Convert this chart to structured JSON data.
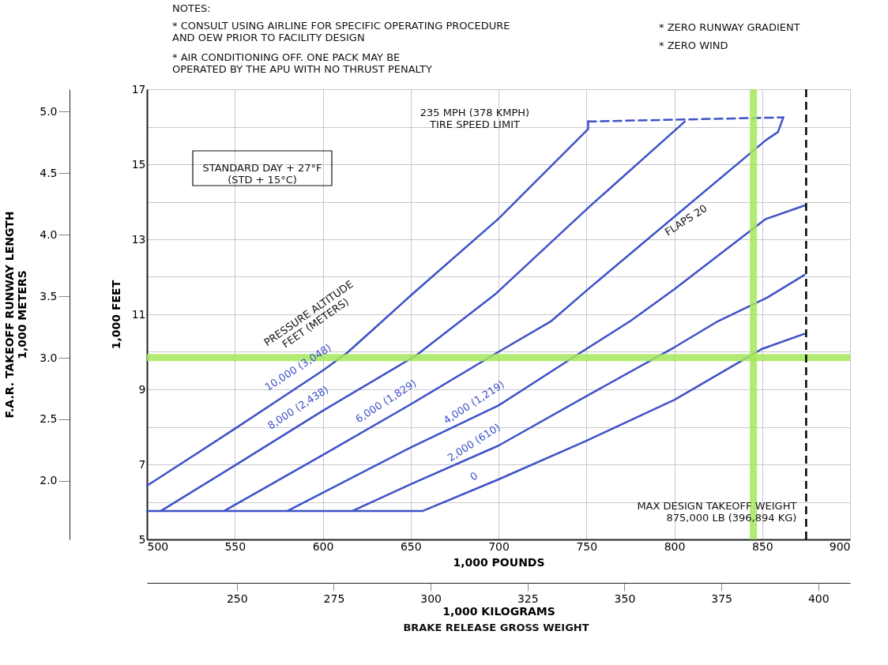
{
  "chart_data": {
    "type": "line",
    "xlabel": "1,000 POUNDS",
    "ylabel": "1,000 FEET",
    "x2label": "1,000 KILOGRAMS",
    "y2label": "F.A.R. TAKEOFF RUNWAY LENGTH\n1,000 METERS",
    "xlim": [
      500,
      900
    ],
    "xticks": [
      500,
      550,
      600,
      650,
      700,
      750,
      800,
      850,
      900
    ],
    "ylim": [
      5,
      17
    ],
    "yticks": [
      5,
      {
        "value": 6,
        "label": null
      },
      7,
      {
        "value": 8,
        "label": null
      },
      9,
      {
        "value": 10,
        "label": null
      },
      11,
      {
        "value": 12,
        "label": null
      },
      13,
      {
        "value": 14,
        "label": null
      },
      15,
      {
        "value": 16,
        "label": null
      },
      17
    ],
    "x2lim": [
      226.8,
      408.2
    ],
    "x2ticks": [
      250,
      275,
      300,
      325,
      350,
      375,
      400
    ],
    "y2lim": [
      1.524,
      5.182
    ],
    "y2ticks": [
      {
        "value": 2,
        "label": "2.0"
      },
      2.5,
      {
        "value": 3,
        "label": "3.0"
      },
      3.5,
      {
        "value": 4,
        "label": "4.0"
      },
      4.5,
      {
        "value": 5,
        "label": "5.0"
      }
    ],
    "grid": true,
    "legend": false,
    "line_style": "solid",
    "series": [
      {
        "name": "10,000 (3,048)",
        "color": "#3f51c8",
        "x": [
          500,
          550,
          600,
          614,
          634,
          650,
          700,
          751,
          751
        ],
        "values": [
          6.43,
          7.95,
          9.5,
          9.98,
          10.82,
          11.5,
          13.55,
          15.94,
          16.14
        ]
      },
      {
        "name": "8,000 (2,438)",
        "color": "#3f51c8",
        "x": [
          508,
          550,
          600,
          653,
          698,
          751,
          806
        ],
        "values": [
          5.76,
          6.97,
          8.43,
          9.9,
          11.53,
          13.84,
          16.14
        ]
      },
      {
        "name": "6,000 (1,829)",
        "color": "#3f51c8",
        "x": [
          544,
          600,
          650,
          700,
          730,
          751,
          800,
          852,
          859,
          862
        ],
        "values": [
          5.76,
          7.25,
          8.6,
          10.0,
          10.82,
          11.67,
          13.6,
          15.64,
          15.86,
          16.25
        ]
      },
      {
        "name": "4,000 (1,219)",
        "color": "#3f51c8",
        "x": [
          580,
          650,
          700,
          750,
          775,
          800,
          852,
          874
        ],
        "values": [
          5.76,
          7.45,
          8.57,
          10.08,
          10.82,
          11.67,
          13.54,
          13.9
        ]
      },
      {
        "name": "2,000 (610)",
        "color": "#3f51c8",
        "x": [
          617,
          650,
          700,
          750,
          800,
          825,
          853,
          874
        ],
        "values": [
          5.76,
          6.47,
          7.5,
          8.82,
          10.12,
          10.82,
          11.45,
          12.05
        ]
      },
      {
        "name": "0",
        "color": "#3f51c8",
        "x": [
          500,
          657,
          700,
          750,
          800,
          850,
          874
        ],
        "values": [
          5.76,
          5.76,
          6.6,
          7.63,
          8.72,
          10.08,
          10.48
        ]
      },
      {
        "color": "#3f51c8",
        "line_style": "dashed",
        "x": [
          751,
          862
        ],
        "values": [
          16.14,
          16.25
        ]
      }
    ],
    "ref_lines": [
      {
        "axis": "y",
        "value": 9.85,
        "color": "#a5e85a",
        "line_style": "solid"
      },
      {
        "axis": "x",
        "value": 845,
        "color": "#a5e85a",
        "line_style": "solid"
      },
      {
        "axis": "x",
        "value": 875,
        "color": "#000000",
        "line_style": "dashed",
        "label": "MAX DESIGN TAKEOFF WEIGHT\n875,000 LB (396,894 KG)"
      }
    ],
    "annotations": [
      "NOTES:",
      "*   CONSULT USING AIRLINE FOR SPECIFIC OPERATING PROCEDURE\n     AND OEW PRIOR TO FACILITY DESIGN",
      "*   AIR CONDITIONING OFF.  ONE PACK MAY BE\n     OPERATED BY THE APU WITH NO THRUST PENALTY",
      "*   ZERO RUNWAY GRADIENT",
      "*   ZERO WIND",
      "STANDARD DAY + 27°F\n(STD + 15°C)",
      "BRAKE RELEASE GROSS WEIGHT",
      "PRESSURE ALTITUDE\nFEET    (METERS)",
      {
        "text": "FLAPS 20",
        "x": 800,
        "y": 13.6
      },
      "235 MPH (378 KMPH)\nTIRE SPEED LIMIT"
    ]
  }
}
